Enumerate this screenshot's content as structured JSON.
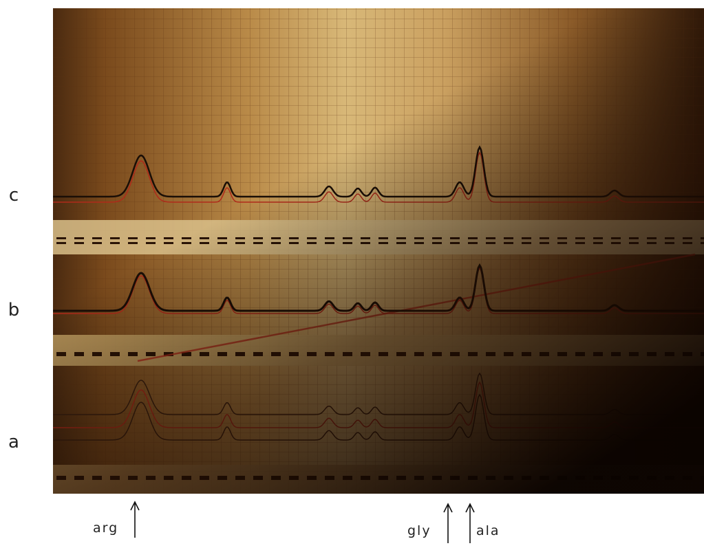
{
  "panel_labels": [
    "c",
    "b",
    "a"
  ],
  "amino_acids": [
    "arg",
    "gly",
    "ala"
  ]
}
